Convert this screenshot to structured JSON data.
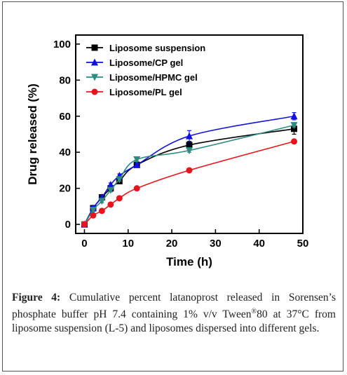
{
  "chart_data": {
    "type": "line",
    "xlabel": "Time (h)",
    "ylabel": "Drug released (%)",
    "xlim": [
      -2,
      50
    ],
    "ylim": [
      -5,
      105
    ],
    "xticks": [
      0,
      10,
      20,
      30,
      40,
      50
    ],
    "yticks": [
      0,
      20,
      40,
      60,
      80,
      100
    ],
    "legend_position": "top-left",
    "grid": false,
    "series": [
      {
        "name": "Liposome suspension",
        "color": "#000000",
        "marker": "square",
        "x": [
          0,
          2,
          4,
          6,
          8,
          12,
          24,
          48
        ],
        "y": [
          0,
          9,
          15,
          20,
          24,
          33,
          44,
          53
        ],
        "err": [
          0,
          1,
          1,
          1,
          1,
          1,
          2,
          3
        ]
      },
      {
        "name": "Liposome/CP gel",
        "color": "#1010e0",
        "marker": "triangle-up",
        "x": [
          0,
          2,
          4,
          6,
          8,
          12,
          24,
          48
        ],
        "y": [
          0,
          9,
          15,
          22,
          27,
          33,
          49,
          60
        ],
        "err": [
          0,
          1,
          1,
          1,
          1,
          1,
          3,
          2
        ]
      },
      {
        "name": "Liposome/HPMC gel",
        "color": "#2e8b80",
        "marker": "triangle-down",
        "x": [
          0,
          2,
          4,
          6,
          8,
          12,
          24,
          48
        ],
        "y": [
          0,
          8,
          13,
          19,
          25,
          36,
          41,
          55
        ],
        "err": [
          0,
          1,
          1,
          1,
          1,
          1,
          1,
          1
        ]
      },
      {
        "name": "Liposome/PL gel",
        "color": "#e8141c",
        "marker": "circle",
        "x": [
          0,
          2,
          4,
          6,
          8,
          12,
          24,
          48
        ],
        "y": [
          0,
          5,
          7.5,
          11,
          14.5,
          20,
          30,
          46
        ],
        "err": [
          0,
          1,
          1,
          1,
          1,
          1,
          1,
          1
        ]
      }
    ]
  },
  "caption": {
    "label": "Figure 4:",
    "text_before_sup": " Cumulative percent latanoprost released in Sorensen’s phosphate buffer pH 7.4 containing 1% v/v Tween",
    "sup": "®",
    "text_after_sup": "80 at 37°C from liposome suspension (L-5) and liposomes dispersed into different gels."
  }
}
